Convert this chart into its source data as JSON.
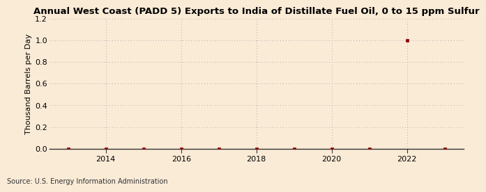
{
  "title": "Annual West Coast (PADD 5) Exports to India of Distillate Fuel Oil, 0 to 15 ppm Sulfur",
  "ylabel": "Thousand Barrels per Day",
  "source": "Source: U.S. Energy Information Administration",
  "background_color": "#faebd7",
  "years": [
    2013,
    2014,
    2015,
    2016,
    2017,
    2018,
    2019,
    2020,
    2021,
    2022,
    2023
  ],
  "values": [
    0.0,
    0.0,
    0.0,
    0.0,
    0.0,
    0.0,
    0.0,
    0.0,
    0.0,
    1.0,
    0.0
  ],
  "marker_color": "#8b0000",
  "xlim": [
    2012.5,
    2023.5
  ],
  "ylim": [
    0.0,
    1.2
  ],
  "yticks": [
    0.0,
    0.2,
    0.4,
    0.6,
    0.8,
    1.0,
    1.2
  ],
  "xticks": [
    2014,
    2016,
    2018,
    2020,
    2022
  ],
  "grid_color": "#aaaaaa",
  "title_fontsize": 9.5,
  "axis_fontsize": 8.0,
  "tick_fontsize": 8.0,
  "source_fontsize": 7.0
}
